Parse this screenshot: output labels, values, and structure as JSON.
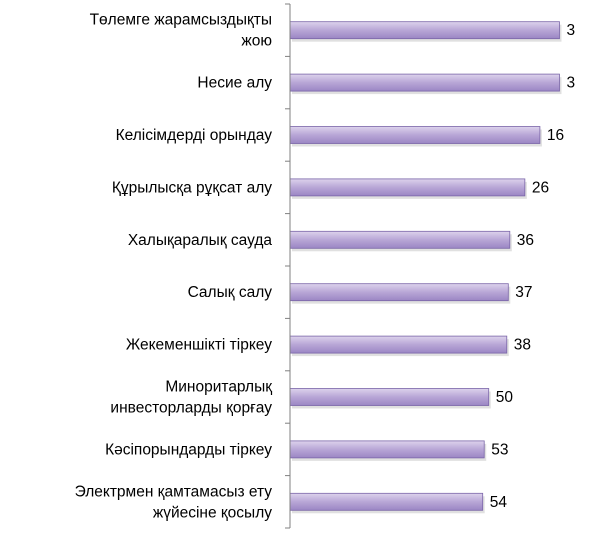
{
  "chart_data": {
    "type": "bar",
    "orientation": "horizontal",
    "categories": [
      [
        "Төлемге жарамсыздықты",
        "жою"
      ],
      [
        "Несие алу"
      ],
      [
        "Келісімдерді орындау"
      ],
      [
        "Құрылысқа рұқсат алу"
      ],
      [
        "Халықаралық сауда"
      ],
      [
        "Салық салу"
      ],
      [
        "Жекеменшікті тіркеу"
      ],
      [
        "Миноритарлық",
        "инвесторларды қорғау"
      ],
      [
        "Кәсіпорындарды тіркеу"
      ],
      [
        "Электрмен қамтамасыз ету",
        "жүйесіне қосылу"
      ]
    ],
    "values": [
      3,
      3,
      16,
      26,
      36,
      37,
      38,
      50,
      53,
      54
    ],
    "bar_direction": "right-to-left",
    "xlim": [
      0,
      182
    ],
    "grid": false,
    "legend": "none",
    "colors": {
      "bar_fill_top": "#ddd3ec",
      "bar_fill_mid": "#b8a6d6",
      "bar_fill_bottom": "#9b86c4",
      "bar_stroke": "#7a65a8",
      "axis": "#808080",
      "text": "#000000"
    }
  }
}
